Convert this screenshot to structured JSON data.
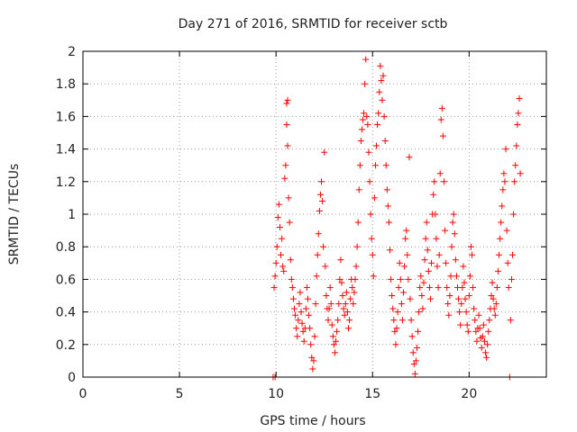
{
  "chart_data": {
    "type": "scatter",
    "title": "Day 271 of 2016, SRMTID for receiver sctb",
    "xlabel": "GPS time / hours",
    "ylabel": "SRMTID / TECUs",
    "xlim": [
      0,
      24
    ],
    "ylim": [
      0,
      2
    ],
    "xticks": [
      "0",
      "5",
      "10",
      "15",
      "20"
    ],
    "yticks": [
      "0",
      "0.2",
      "0.4",
      "0.6",
      "0.8",
      "1",
      "1.2",
      "1.4",
      "1.6",
      "1.8",
      "2"
    ],
    "grid": true,
    "marker": "+",
    "color": "#ff0000",
    "series": [
      {
        "points": [
          [
            9.85,
            0.0
          ],
          [
            9.95,
            0.0
          ],
          [
            9.9,
            0.55
          ],
          [
            9.95,
            0.62
          ],
          [
            10.0,
            0.7
          ],
          [
            10.05,
            0.8
          ],
          [
            10.1,
            0.98
          ],
          [
            10.15,
            1.06
          ],
          [
            10.2,
            0.92
          ],
          [
            10.25,
            0.75
          ],
          [
            10.3,
            0.85
          ],
          [
            10.35,
            0.68
          ],
          [
            10.4,
            0.65
          ],
          [
            10.45,
            1.22
          ],
          [
            10.5,
            1.3
          ],
          [
            10.55,
            1.55
          ],
          [
            10.55,
            1.68
          ],
          [
            10.6,
            1.7
          ],
          [
            10.6,
            1.42
          ],
          [
            10.65,
            1.1
          ],
          [
            10.7,
            0.95
          ],
          [
            10.75,
            0.72
          ],
          [
            10.8,
            0.6
          ],
          [
            10.85,
            0.55
          ],
          [
            10.9,
            0.48
          ],
          [
            10.95,
            0.42
          ],
          [
            11.0,
            0.38
          ],
          [
            11.05,
            0.3
          ],
          [
            11.1,
            0.25
          ],
          [
            11.15,
            0.35
          ],
          [
            11.2,
            0.45
          ],
          [
            11.25,
            0.52
          ],
          [
            11.3,
            0.4
          ],
          [
            11.35,
            0.33
          ],
          [
            11.4,
            0.28
          ],
          [
            11.45,
            0.22
          ],
          [
            11.5,
            0.3
          ],
          [
            11.55,
            0.42
          ],
          [
            11.6,
            0.55
          ],
          [
            11.65,
            0.48
          ],
          [
            11.7,
            0.38
          ],
          [
            11.75,
            0.3
          ],
          [
            11.8,
            0.2
          ],
          [
            11.85,
            0.12
          ],
          [
            11.9,
            0.05
          ],
          [
            11.95,
            0.1
          ],
          [
            12.0,
            0.25
          ],
          [
            12.05,
            0.45
          ],
          [
            12.1,
            0.62
          ],
          [
            12.15,
            0.75
          ],
          [
            12.2,
            0.88
          ],
          [
            12.25,
            1.02
          ],
          [
            12.3,
            1.12
          ],
          [
            12.35,
            1.2
          ],
          [
            12.4,
            1.08
          ],
          [
            12.45,
            0.8
          ],
          [
            12.5,
            1.38
          ],
          [
            12.55,
            0.68
          ],
          [
            12.6,
            0.5
          ],
          [
            12.65,
            0.42
          ],
          [
            12.7,
            0.35
          ],
          [
            12.75,
            0.42
          ],
          [
            12.8,
            0.55
          ],
          [
            12.85,
            0.45
          ],
          [
            12.9,
            0.32
          ],
          [
            12.95,
            0.25
          ],
          [
            13.0,
            0.2
          ],
          [
            13.05,
            0.15
          ],
          [
            13.1,
            0.22
          ],
          [
            13.15,
            0.28
          ],
          [
            13.2,
            0.35
          ],
          [
            13.25,
            0.45
          ],
          [
            13.3,
            0.6
          ],
          [
            13.35,
            0.72
          ],
          [
            13.4,
            0.58
          ],
          [
            13.45,
            0.5
          ],
          [
            13.5,
            0.42
          ],
          [
            13.55,
            0.38
          ],
          [
            13.6,
            0.45
          ],
          [
            13.65,
            0.52
          ],
          [
            13.7,
            0.4
          ],
          [
            13.75,
            0.3
          ],
          [
            13.8,
            0.35
          ],
          [
            13.85,
            0.48
          ],
          [
            13.9,
            0.6
          ],
          [
            13.95,
            0.55
          ],
          [
            14.0,
            0.45
          ],
          [
            14.05,
            0.52
          ],
          [
            14.1,
            0.6
          ],
          [
            14.15,
            0.68
          ],
          [
            14.2,
            0.8
          ],
          [
            14.25,
            0.95
          ],
          [
            14.3,
            1.15
          ],
          [
            14.35,
            1.3
          ],
          [
            14.4,
            1.45
          ],
          [
            14.45,
            1.52
          ],
          [
            14.5,
            1.58
          ],
          [
            14.55,
            1.62
          ],
          [
            14.6,
            1.8
          ],
          [
            14.65,
            1.95
          ],
          [
            14.7,
            1.6
          ],
          [
            14.75,
            1.55
          ],
          [
            14.8,
            1.38
          ],
          [
            14.85,
            1.2
          ],
          [
            14.9,
            1.0
          ],
          [
            14.95,
            0.85
          ],
          [
            15.0,
            0.75
          ],
          [
            15.05,
            0.62
          ],
          [
            15.1,
            1.1
          ],
          [
            15.15,
            1.3
          ],
          [
            15.2,
            1.42
          ],
          [
            15.25,
            1.55
          ],
          [
            15.3,
            1.62
          ],
          [
            15.35,
            1.75
          ],
          [
            15.4,
            1.91
          ],
          [
            15.45,
            1.82
          ],
          [
            15.5,
            1.7
          ],
          [
            15.55,
            1.85
          ],
          [
            15.6,
            1.6
          ],
          [
            15.65,
            1.45
          ],
          [
            15.7,
            1.3
          ],
          [
            15.75,
            1.15
          ],
          [
            15.8,
            1.05
          ],
          [
            15.85,
            0.95
          ],
          [
            15.9,
            0.78
          ],
          [
            15.95,
            0.6
          ],
          [
            16.0,
            0.5
          ],
          [
            16.05,
            0.42
          ],
          [
            16.1,
            0.35
          ],
          [
            16.15,
            0.28
          ],
          [
            16.2,
            0.2
          ],
          [
            16.25,
            0.3
          ],
          [
            16.3,
            0.4
          ],
          [
            16.35,
            0.55
          ],
          [
            16.4,
            0.7
          ],
          [
            16.45,
            0.6
          ],
          [
            16.5,
            0.45
          ],
          [
            16.55,
            0.35
          ],
          [
            16.6,
            0.52
          ],
          [
            16.65,
            0.68
          ],
          [
            16.7,
            0.85
          ],
          [
            16.75,
            0.9
          ],
          [
            16.8,
            0.75
          ],
          [
            16.85,
            0.6
          ],
          [
            16.9,
            1.35
          ],
          [
            16.95,
            0.48
          ],
          [
            17.0,
            0.35
          ],
          [
            17.05,
            0.25
          ],
          [
            17.1,
            0.15
          ],
          [
            17.15,
            0.08
          ],
          [
            17.2,
            0.02
          ],
          [
            17.25,
            0.1
          ],
          [
            17.3,
            0.18
          ],
          [
            17.35,
            0.28
          ],
          [
            17.4,
            0.4
          ],
          [
            17.45,
            0.55
          ],
          [
            17.5,
            0.62
          ],
          [
            17.55,
            0.5
          ],
          [
            17.6,
            0.42
          ],
          [
            17.65,
            0.58
          ],
          [
            17.7,
            0.72
          ],
          [
            17.75,
            0.85
          ],
          [
            17.8,
            0.95
          ],
          [
            17.85,
            0.78
          ],
          [
            17.9,
            0.65
          ],
          [
            17.95,
            0.55
          ],
          [
            18.0,
            0.48
          ],
          [
            18.05,
            0.7
          ],
          [
            18.1,
            1.0
          ],
          [
            18.15,
            1.12
          ],
          [
            18.2,
            1.2
          ],
          [
            18.25,
            1.0
          ],
          [
            18.3,
            0.85
          ],
          [
            18.35,
            0.68
          ],
          [
            18.4,
            0.55
          ],
          [
            18.45,
            0.75
          ],
          [
            18.5,
            1.25
          ],
          [
            18.55,
            1.58
          ],
          [
            18.6,
            1.65
          ],
          [
            18.65,
            1.48
          ],
          [
            18.7,
            1.2
          ],
          [
            18.75,
            0.9
          ],
          [
            18.8,
            0.7
          ],
          [
            18.85,
            0.55
          ],
          [
            18.9,
            0.45
          ],
          [
            18.95,
            0.38
          ],
          [
            19.0,
            0.5
          ],
          [
            19.05,
            0.62
          ],
          [
            19.1,
            0.8
          ],
          [
            19.15,
            0.95
          ],
          [
            19.2,
            1.0
          ],
          [
            19.25,
            0.88
          ],
          [
            19.3,
            0.72
          ],
          [
            19.35,
            0.62
          ],
          [
            19.4,
            0.55
          ],
          [
            19.45,
            0.48
          ],
          [
            19.5,
            0.4
          ],
          [
            19.55,
            0.32
          ],
          [
            19.6,
            0.45
          ],
          [
            19.65,
            0.55
          ],
          [
            19.7,
            0.68
          ],
          [
            19.75,
            0.58
          ],
          [
            19.8,
            0.48
          ],
          [
            19.85,
            0.4
          ],
          [
            19.9,
            0.32
          ],
          [
            19.95,
            0.28
          ],
          [
            20.0,
            0.5
          ],
          [
            20.05,
            0.62
          ],
          [
            20.1,
            0.8
          ],
          [
            20.15,
            0.75
          ],
          [
            20.2,
            0.55
          ],
          [
            20.25,
            0.42
          ],
          [
            20.3,
            0.35
          ],
          [
            20.35,
            0.28
          ],
          [
            20.4,
            0.22
          ],
          [
            20.45,
            0.3
          ],
          [
            20.5,
            0.38
          ],
          [
            20.55,
            0.3
          ],
          [
            20.6,
            0.24
          ],
          [
            20.65,
            0.18
          ],
          [
            20.7,
            0.25
          ],
          [
            20.75,
            0.32
          ],
          [
            20.8,
            0.22
          ],
          [
            20.85,
            0.15
          ],
          [
            20.9,
            0.12
          ],
          [
            20.95,
            0.2
          ],
          [
            21.0,
            0.28
          ],
          [
            21.05,
            0.35
          ],
          [
            21.1,
            0.42
          ],
          [
            21.15,
            0.5
          ],
          [
            21.2,
            0.58
          ],
          [
            21.25,
            0.48
          ],
          [
            21.3,
            0.42
          ],
          [
            21.35,
            0.38
          ],
          [
            21.4,
            0.45
          ],
          [
            21.45,
            0.55
          ],
          [
            21.5,
            0.65
          ],
          [
            21.55,
            0.75
          ],
          [
            21.6,
            0.85
          ],
          [
            21.65,
            0.95
          ],
          [
            21.7,
            1.05
          ],
          [
            21.75,
            1.15
          ],
          [
            21.8,
            1.25
          ],
          [
            21.85,
            1.2
          ],
          [
            21.9,
            1.4
          ],
          [
            21.95,
            0.9
          ],
          [
            22.0,
            0.7
          ],
          [
            22.05,
            0.55
          ],
          [
            22.1,
            0.0
          ],
          [
            22.15,
            0.35
          ],
          [
            22.2,
            0.6
          ],
          [
            22.25,
            0.75
          ],
          [
            22.3,
            1.0
          ],
          [
            22.35,
            1.2
          ],
          [
            22.4,
            1.3
          ],
          [
            22.45,
            1.42
          ],
          [
            22.5,
            1.55
          ],
          [
            22.55,
            1.62
          ],
          [
            22.6,
            1.71
          ],
          [
            22.65,
            1.25
          ]
        ]
      }
    ]
  }
}
